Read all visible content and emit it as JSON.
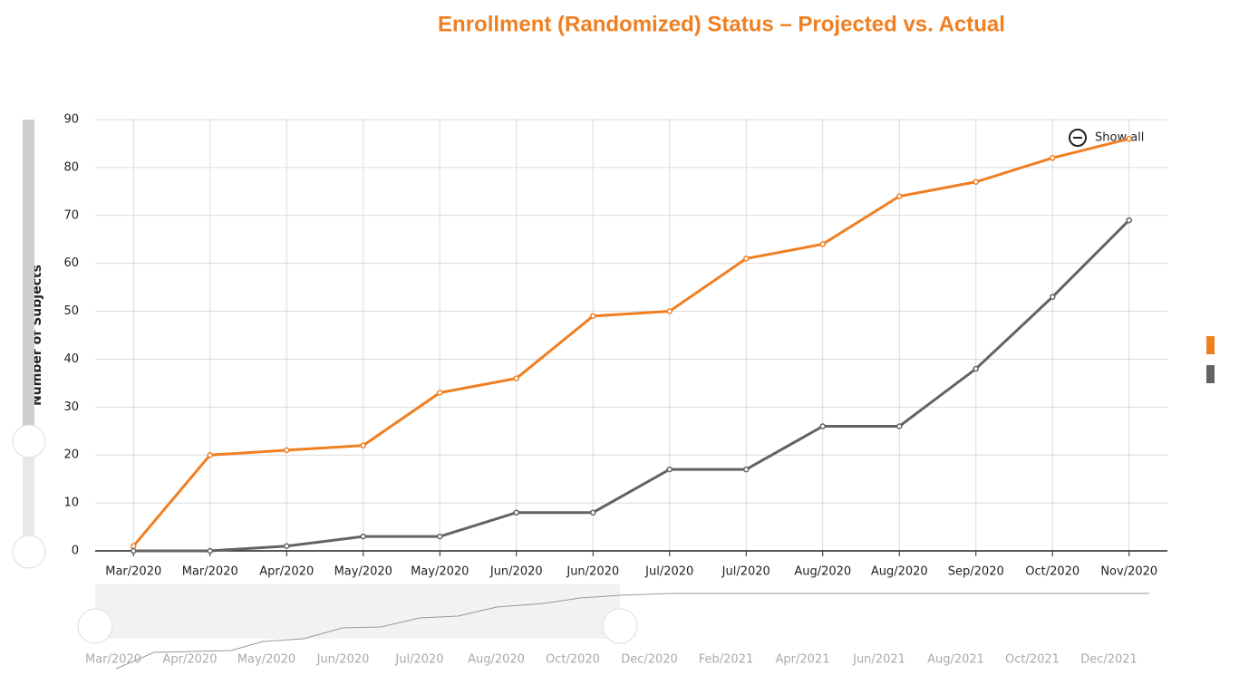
{
  "chart_data": {
    "type": "line",
    "title": "Enrollment (Randomized) Status – Projected vs. Actual",
    "y_label": "Number of Subjects",
    "categories": [
      "Mar/2020",
      "Mar/2020",
      "Apr/2020",
      "May/2020",
      "May/2020",
      "Jun/2020",
      "Jun/2020",
      "Jul/2020",
      "Jul/2020",
      "Aug/2020",
      "Aug/2020",
      "Sep/2020",
      "Oct/2020",
      "Nov/2020"
    ],
    "series": [
      {
        "color": "#f07f22",
        "values": [
          1,
          20,
          21,
          22,
          33,
          36,
          49,
          50,
          61,
          64,
          74,
          77,
          82,
          86
        ]
      },
      {
        "color": "#636366",
        "values": [
          0,
          0,
          1,
          3,
          3,
          8,
          8,
          17,
          17,
          26,
          26,
          38,
          53,
          69
        ]
      }
    ],
    "ylim": [
      0,
      90
    ],
    "yticks": [
      0,
      10,
      20,
      30,
      40,
      50,
      60,
      70,
      80,
      90
    ],
    "grid": true,
    "reset_button": "Show all",
    "navigator": {
      "labels": [
        "Mar/2020",
        "Apr/2020",
        "May/2020",
        "Jun/2020",
        "Jul/2020",
        "Aug/2020",
        "Oct/2020",
        "Dec/2020",
        "Feb/2021",
        "Apr/2021",
        "Jun/2021",
        "Aug/2021",
        "Oct/2021",
        "Dec/2021"
      ]
    }
  }
}
